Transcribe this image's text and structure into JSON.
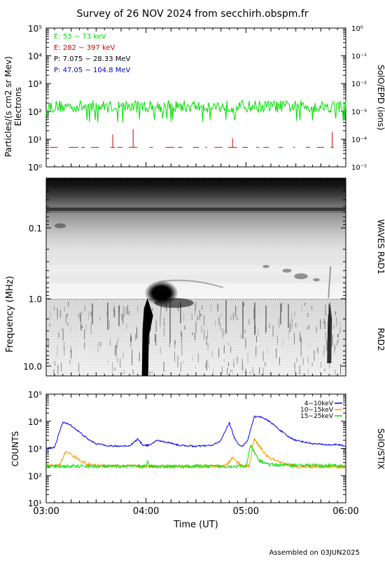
{
  "title": "Survey of 26 NOV 2024 from secchirh.obspm.fr",
  "footer": "Assembled on 03JUN2025",
  "colors": {
    "green": "#00dd00",
    "red": "#cc0000",
    "black": "#000000",
    "blue": "#0000cc",
    "orange": "#ff9900",
    "stix_blue": "#0000ee"
  },
  "chart_data": [
    {
      "type": "line",
      "ylabel_left": [
        "Particles/(s cm2 sr Mev)",
        "Electrons"
      ],
      "ylabel_right": "SolO/EPD (ions)",
      "yscale": "log",
      "ylim": [
        1,
        100000
      ],
      "yticks": [
        "10⁰",
        "10¹",
        "10²",
        "10³",
        "10⁴",
        "10⁵"
      ],
      "ylim_right": [
        1e-05,
        1
      ],
      "yticks_right": [
        "10⁻⁵",
        "10⁻⁴",
        "10⁻³",
        "10⁻²",
        "10⁻¹",
        "10⁰"
      ],
      "xlim": [
        "03:00",
        "06:00"
      ],
      "legend": [
        "E: 53 − 73 keV",
        "E: 282 − 397 keV",
        "P: 7.075 − 28.33 MeV",
        "P: 47.05 − 104.8 MeV"
      ],
      "legend_position": "top-left",
      "series": [
        {
          "name": "E: 53 − 73 keV",
          "color": "green",
          "baseline": 150,
          "min": 40,
          "max": 300
        },
        {
          "name": "E: 282 − 397 keV",
          "color": "red",
          "baseline": 5,
          "max": 25,
          "sparse": true
        }
      ]
    },
    {
      "type": "heatmap",
      "ylabel_left": "Frequency (MHz)",
      "ylabel_right_top": "WAVES RAD1",
      "ylabel_right_bottom": "RAD2",
      "yscale": "log",
      "yticks": [
        "0.1",
        "1.0",
        "10.0"
      ],
      "ylim": [
        0.025,
        14
      ],
      "xlim": [
        "03:00",
        "06:00"
      ],
      "events": [
        {
          "type": "type III burst",
          "time": "04:00",
          "freq_range": [
            0.4,
            14
          ]
        },
        {
          "type": "type III burst",
          "time": "05:50",
          "freq_range": [
            0.7,
            14
          ]
        }
      ]
    },
    {
      "type": "line",
      "ylabel_left": "COUNTS",
      "ylabel_right": "SolO/STIX",
      "yscale": "log",
      "ylim": [
        10,
        100000
      ],
      "yticks": [
        "10¹",
        "10²",
        "10³",
        "10⁴",
        "10⁵"
      ],
      "xlabel": "Time (UT)",
      "xticks": [
        "03:00",
        "04:00",
        "05:00",
        "06:00"
      ],
      "legend": [
        "4−10keV",
        "10−15keV",
        "15−25keV"
      ],
      "legend_position": "top-right",
      "series": [
        {
          "name": "4−10keV",
          "color": "stix_blue",
          "x_min": [
            0,
            5,
            10,
            15,
            20,
            25,
            30,
            40,
            50,
            55,
            58,
            60,
            63,
            66,
            70,
            75,
            80,
            90,
            100,
            105,
            110,
            113,
            115,
            118,
            121,
            125,
            130,
            135,
            140,
            145,
            150,
            160,
            170,
            175,
            180
          ],
          "values": [
            1000,
            1100,
            9500,
            7000,
            4000,
            2200,
            1500,
            1200,
            1250,
            2200,
            1350,
            1300,
            1350,
            2000,
            1800,
            1600,
            1300,
            1200,
            1300,
            2000,
            9000,
            2500,
            1500,
            1200,
            2000,
            15000,
            14000,
            9000,
            5000,
            2800,
            2000,
            1500,
            1350,
            1400,
            1200
          ]
        },
        {
          "name": "10−15keV",
          "color": "orange",
          "x_min": [
            0,
            8,
            12,
            18,
            25,
            35,
            60,
            90,
            105,
            108,
            112,
            118,
            122,
            125,
            128,
            133,
            140,
            150,
            180
          ],
          "values": [
            220,
            240,
            800,
            450,
            250,
            230,
            220,
            220,
            220,
            230,
            450,
            220,
            230,
            2200,
            1200,
            500,
            300,
            220,
            210
          ]
        },
        {
          "name": "15−25keV",
          "color": "green",
          "x_min": [
            0,
            60,
            61,
            62,
            120,
            123,
            125,
            128,
            135,
            180
          ],
          "values": [
            220,
            220,
            320,
            220,
            220,
            1300,
            700,
            350,
            250,
            230
          ]
        }
      ]
    }
  ]
}
